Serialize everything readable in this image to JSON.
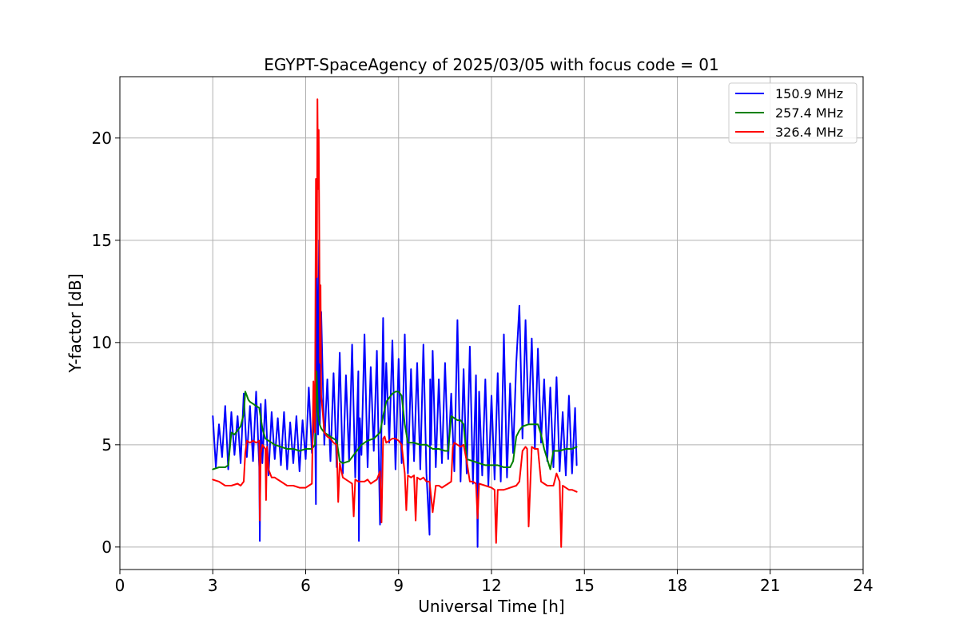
{
  "chart_data": {
    "type": "line",
    "title": "EGYPT-SpaceAgency of 2025/03/05 with focus code = 01",
    "xlabel": "Universal Time [h]",
    "ylabel": "Y-factor [dB]",
    "xlim": [
      0,
      24
    ],
    "ylim": [
      -1.1,
      23.0
    ],
    "xticks": [
      0,
      3,
      6,
      9,
      12,
      15,
      18,
      21,
      24
    ],
    "yticks": [
      0,
      5,
      10,
      15,
      20
    ],
    "grid": true,
    "legend_position": "top-right",
    "series": [
      {
        "name": "150.9 MHz",
        "color": "#0000ff",
        "x": [
          3.0,
          3.1,
          3.2,
          3.3,
          3.4,
          3.5,
          3.6,
          3.7,
          3.8,
          3.9,
          4.0,
          4.1,
          4.2,
          4.3,
          4.4,
          4.5,
          4.52,
          4.55,
          4.6,
          4.7,
          4.8,
          4.9,
          5.0,
          5.1,
          5.2,
          5.3,
          5.4,
          5.5,
          5.6,
          5.7,
          5.8,
          5.9,
          6.0,
          6.1,
          6.2,
          6.3,
          6.33,
          6.36,
          6.4,
          6.43,
          6.46,
          6.5,
          6.6,
          6.7,
          6.8,
          6.9,
          7.0,
          7.1,
          7.2,
          7.3,
          7.4,
          7.5,
          7.6,
          7.7,
          7.72,
          7.75,
          7.8,
          7.9,
          8.0,
          8.1,
          8.2,
          8.3,
          8.4,
          8.5,
          8.55,
          8.6,
          8.7,
          8.8,
          8.9,
          9.0,
          9.1,
          9.2,
          9.3,
          9.4,
          9.5,
          9.6,
          9.7,
          9.8,
          9.9,
          10.0,
          10.02,
          10.05,
          10.1,
          10.2,
          10.3,
          10.4,
          10.5,
          10.6,
          10.7,
          10.8,
          10.9,
          11.0,
          11.1,
          11.2,
          11.3,
          11.4,
          11.5,
          11.55,
          11.6,
          11.7,
          11.8,
          11.9,
          12.0,
          12.1,
          12.2,
          12.3,
          12.4,
          12.5,
          12.6,
          12.7,
          12.8,
          12.9,
          13.0,
          13.1,
          13.2,
          13.3,
          13.4,
          13.5,
          13.6,
          13.7,
          13.8,
          13.9,
          14.0,
          14.1,
          14.2,
          14.3,
          14.4,
          14.5,
          14.6,
          14.7,
          14.75
        ],
        "values": [
          6.4,
          3.9,
          6.0,
          4.4,
          6.9,
          3.8,
          6.6,
          4.5,
          6.4,
          4.1,
          7.5,
          4.4,
          6.9,
          4.2,
          7.6,
          3.9,
          0.3,
          7.0,
          4.1,
          7.2,
          3.5,
          6.6,
          4.3,
          6.3,
          4.0,
          6.6,
          3.8,
          6.1,
          4.1,
          6.4,
          3.7,
          6.2,
          4.3,
          7.8,
          4.6,
          6.9,
          2.1,
          14.8,
          5.5,
          15.0,
          6.0,
          11.5,
          5.0,
          8.2,
          4.2,
          8.5,
          3.9,
          9.5,
          3.6,
          8.4,
          4.2,
          9.9,
          3.4,
          8.6,
          0.3,
          6.3,
          4.5,
          10.4,
          3.9,
          8.8,
          4.7,
          9.6,
          1.1,
          11.2,
          6.0,
          9.0,
          5.1,
          10.1,
          3.8,
          9.2,
          4.1,
          10.4,
          3.6,
          8.7,
          4.2,
          9.0,
          3.8,
          9.9,
          3.6,
          0.6,
          8.2,
          5.0,
          9.6,
          3.9,
          8.2,
          4.1,
          9.0,
          4.3,
          7.5,
          3.7,
          11.1,
          3.2,
          8.7,
          3.6,
          9.8,
          3.1,
          8.4,
          0.0,
          7.6,
          3.5,
          8.2,
          3.0,
          7.4,
          3.3,
          8.5,
          3.2,
          10.4,
          3.4,
          8.0,
          4.6,
          9.0,
          11.8,
          5.3,
          11.1,
          6.0,
          10.2,
          4.8,
          9.7,
          5.1,
          8.2,
          4.2,
          7.8,
          3.9,
          8.3,
          3.7,
          6.6,
          3.5,
          7.4,
          3.6,
          6.8,
          4.0
        ]
      },
      {
        "name": "257.4 MHz",
        "color": "#008000",
        "x": [
          3.0,
          3.2,
          3.4,
          3.5,
          3.6,
          3.7,
          3.8,
          3.9,
          4.0,
          4.05,
          4.1,
          4.15,
          4.2,
          4.3,
          4.4,
          4.5,
          4.6,
          4.7,
          4.8,
          4.9,
          5.0,
          5.2,
          5.4,
          5.6,
          5.8,
          6.0,
          6.2,
          6.3,
          6.35,
          6.4,
          6.45,
          6.5,
          6.6,
          6.7,
          6.8,
          6.9,
          7.0,
          7.1,
          7.2,
          7.4,
          7.6,
          7.8,
          8.0,
          8.2,
          8.4,
          8.5,
          8.6,
          8.7,
          8.8,
          8.9,
          9.0,
          9.1,
          9.2,
          9.3,
          9.5,
          9.7,
          9.9,
          10.1,
          10.3,
          10.5,
          10.6,
          10.7,
          10.8,
          10.9,
          11.0,
          11.1,
          11.2,
          11.4,
          11.6,
          11.8,
          12.0,
          12.2,
          12.4,
          12.6,
          12.7,
          12.8,
          12.9,
          13.0,
          13.2,
          13.4,
          13.5,
          13.6,
          13.7,
          13.8,
          13.9,
          14.0,
          14.2,
          14.4,
          14.6,
          14.75
        ],
        "values": [
          3.8,
          3.9,
          3.9,
          4.0,
          5.6,
          5.5,
          5.7,
          5.9,
          6.5,
          7.6,
          7.4,
          7.2,
          7.1,
          7.0,
          6.9,
          6.8,
          5.8,
          5.3,
          5.2,
          5.1,
          5.0,
          4.9,
          4.8,
          4.8,
          4.7,
          4.8,
          4.8,
          5.0,
          8.6,
          6.5,
          6.0,
          5.8,
          5.6,
          5.5,
          5.4,
          5.3,
          5.2,
          4.2,
          4.1,
          4.2,
          4.6,
          5.0,
          5.2,
          5.3,
          5.6,
          6.4,
          7.1,
          7.3,
          7.5,
          7.6,
          7.6,
          7.4,
          6.0,
          5.1,
          5.1,
          5.0,
          5.0,
          4.8,
          4.8,
          4.7,
          4.7,
          6.4,
          6.3,
          6.2,
          6.2,
          6.0,
          4.3,
          4.2,
          4.1,
          4.0,
          4.0,
          4.0,
          3.9,
          3.9,
          4.2,
          5.4,
          5.7,
          5.9,
          6.0,
          6.0,
          6.0,
          5.5,
          4.8,
          4.3,
          3.8,
          4.7,
          4.7,
          4.8,
          4.8,
          4.9
        ]
      },
      {
        "name": "326.4 MHz",
        "color": "#ff0000",
        "x": [
          3.0,
          3.2,
          3.4,
          3.6,
          3.8,
          3.9,
          4.0,
          4.05,
          4.1,
          4.2,
          4.3,
          4.4,
          4.5,
          4.52,
          4.55,
          4.6,
          4.7,
          4.72,
          4.75,
          4.8,
          4.9,
          5.0,
          5.1,
          5.2,
          5.4,
          5.6,
          5.8,
          6.0,
          6.1,
          6.2,
          6.25,
          6.3,
          6.33,
          6.36,
          6.38,
          6.4,
          6.42,
          6.44,
          6.46,
          6.48,
          6.5,
          6.55,
          6.6,
          6.7,
          6.8,
          6.9,
          7.0,
          7.05,
          7.1,
          7.2,
          7.4,
          7.5,
          7.55,
          7.6,
          7.7,
          7.8,
          7.9,
          8.0,
          8.1,
          8.2,
          8.3,
          8.4,
          8.45,
          8.5,
          8.55,
          8.6,
          8.7,
          8.8,
          8.9,
          9.0,
          9.1,
          9.2,
          9.25,
          9.3,
          9.4,
          9.5,
          9.55,
          9.6,
          9.7,
          9.8,
          9.9,
          10.0,
          10.1,
          10.2,
          10.3,
          10.4,
          10.5,
          10.6,
          10.7,
          10.75,
          10.8,
          10.9,
          11.0,
          11.1,
          11.2,
          11.3,
          11.4,
          11.5,
          11.55,
          11.6,
          11.8,
          12.0,
          12.1,
          12.15,
          12.2,
          12.4,
          12.6,
          12.8,
          12.9,
          13.0,
          13.1,
          13.15,
          13.2,
          13.3,
          13.4,
          13.5,
          13.6,
          13.7,
          13.8,
          14.0,
          14.1,
          14.2,
          14.25,
          14.3,
          14.4,
          14.5,
          14.6,
          14.75
        ],
        "values": [
          3.3,
          3.2,
          3.0,
          3.0,
          3.1,
          3.0,
          3.2,
          4.6,
          5.2,
          5.1,
          5.2,
          5.1,
          5.2,
          1.3,
          4.6,
          5.0,
          4.8,
          2.3,
          4.9,
          3.8,
          3.4,
          3.4,
          3.3,
          3.2,
          3.0,
          3.0,
          2.9,
          2.9,
          3.0,
          3.1,
          8.1,
          5.6,
          18.0,
          13.2,
          21.9,
          17.5,
          20.4,
          14.7,
          9.0,
          12.8,
          7.4,
          6.6,
          5.6,
          5.4,
          5.3,
          5.1,
          5.0,
          2.2,
          4.1,
          3.4,
          3.2,
          3.1,
          1.5,
          3.3,
          3.2,
          3.2,
          3.2,
          3.3,
          3.1,
          3.2,
          3.3,
          3.7,
          1.2,
          5.3,
          5.4,
          5.1,
          5.2,
          5.3,
          5.3,
          5.2,
          5.0,
          3.6,
          1.8,
          3.5,
          3.4,
          3.5,
          1.3,
          3.4,
          3.3,
          3.4,
          3.2,
          3.2,
          1.7,
          3.0,
          3.0,
          2.9,
          3.0,
          3.1,
          3.2,
          4.9,
          5.1,
          5.0,
          4.9,
          5.0,
          4.2,
          3.2,
          3.2,
          3.1,
          1.4,
          3.1,
          3.0,
          2.9,
          2.8,
          0.2,
          2.8,
          2.8,
          2.9,
          3.0,
          3.2,
          4.7,
          4.9,
          4.8,
          1.0,
          4.9,
          4.8,
          4.8,
          3.2,
          3.1,
          3.0,
          3.0,
          3.6,
          3.2,
          0.0,
          3.0,
          2.9,
          2.8,
          2.8,
          2.7
        ]
      }
    ]
  }
}
